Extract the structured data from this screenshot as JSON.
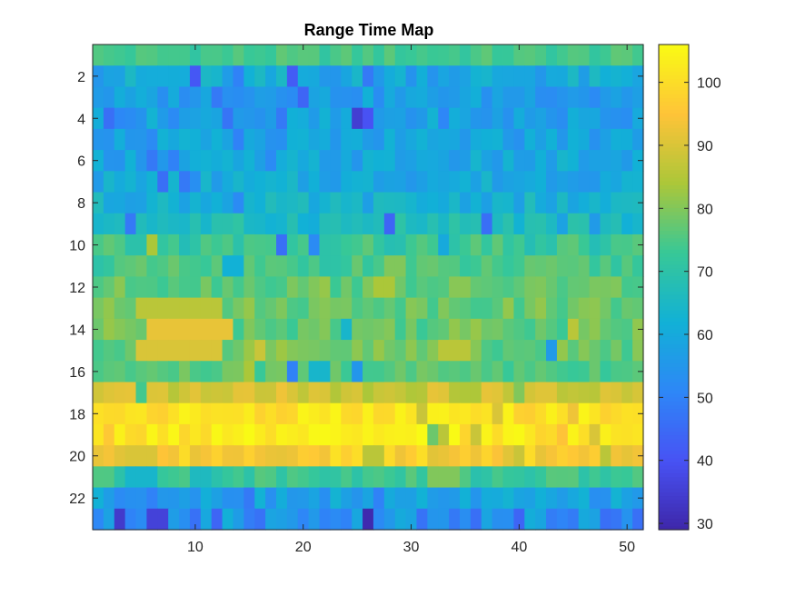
{
  "chart_data": {
    "type": "heatmap",
    "title": "Range Time Map",
    "xlabel": "",
    "ylabel": "",
    "x_range": [
      1,
      51
    ],
    "xlim": [
      0.5,
      51.5
    ],
    "y_range": [
      1,
      23
    ],
    "ylim": [
      0.5,
      23.5
    ],
    "y_reversed": true,
    "x_ticks": [
      "10",
      "20",
      "30",
      "40",
      "50"
    ],
    "y_ticks": [
      "2",
      "4",
      "6",
      "8",
      "10",
      "12",
      "14",
      "16",
      "18",
      "20",
      "22"
    ],
    "colorbar": {
      "colormap": "parula",
      "clim": [
        29,
        106
      ],
      "ticks": [
        "30",
        "40",
        "50",
        "60",
        "70",
        "80",
        "90",
        "100"
      ]
    },
    "rows": [
      {
        "y": 1,
        "base": 74,
        "amp": 3
      },
      {
        "y": 2,
        "base": 60,
        "amp": 6,
        "lows": [
          [
            10,
            41
          ],
          [
            14,
            50
          ],
          [
            19,
            42
          ],
          [
            26,
            48
          ],
          [
            35,
            58
          ]
        ]
      },
      {
        "y": 3,
        "base": 57,
        "amp": 5,
        "lows": [
          [
            12,
            48
          ],
          [
            20,
            44
          ],
          [
            33,
            55
          ],
          [
            47,
            52
          ]
        ]
      },
      {
        "y": 4,
        "base": 57,
        "amp": 6,
        "lows": [
          [
            2,
            46
          ],
          [
            8,
            52
          ],
          [
            13,
            47
          ],
          [
            18,
            48
          ],
          [
            25,
            35
          ],
          [
            26,
            40
          ],
          [
            36,
            55
          ]
        ]
      },
      {
        "y": 5,
        "base": 58,
        "amp": 5,
        "lows": [
          [
            6,
            52
          ],
          [
            14,
            50
          ],
          [
            17,
            54
          ],
          [
            23,
            55
          ],
          [
            29,
            57
          ],
          [
            43,
            62
          ]
        ]
      },
      {
        "y": 6,
        "base": 59,
        "amp": 5,
        "lows": [
          [
            6,
            48
          ],
          [
            8,
            50
          ],
          [
            17,
            52
          ],
          [
            37,
            58
          ],
          [
            48,
            58
          ]
        ]
      },
      {
        "y": 7,
        "base": 60,
        "amp": 5,
        "lows": [
          [
            7,
            46
          ],
          [
            9,
            48
          ],
          [
            10,
            53
          ],
          [
            39,
            58
          ]
        ]
      },
      {
        "y": 8,
        "base": 62,
        "amp": 5,
        "lows": [
          [
            14,
            52
          ],
          [
            43,
            58
          ]
        ]
      },
      {
        "y": 9,
        "base": 66,
        "amp": 5,
        "lows": [
          [
            4,
            48
          ],
          [
            28,
            44
          ],
          [
            37,
            46
          ],
          [
            44,
            58
          ],
          [
            47,
            56
          ]
        ]
      },
      {
        "y": 10,
        "base": 72,
        "amp": 5,
        "lows": [
          [
            18,
            46
          ],
          [
            21,
            52
          ],
          [
            33,
            60
          ]
        ],
        "highs": [
          [
            6,
            84
          ]
        ]
      },
      {
        "y": 11,
        "base": 74,
        "amp": 4,
        "lows": [
          [
            13,
            62
          ],
          [
            14,
            62
          ]
        ],
        "highs": [
          [
            28,
            80
          ],
          [
            29,
            80
          ],
          [
            43,
            78
          ]
        ]
      },
      {
        "y": 12,
        "base": 77,
        "amp": 4,
        "highs": [
          [
            22,
            82
          ],
          [
            27,
            84
          ],
          [
            28,
            84
          ]
        ]
      },
      {
        "y": 13,
        "base": 78,
        "amp": 4,
        "highs": [
          [
            5,
            86
          ],
          [
            6,
            86
          ],
          [
            7,
            86
          ],
          [
            8,
            86
          ],
          [
            9,
            86
          ],
          [
            10,
            86
          ],
          [
            11,
            86
          ],
          [
            12,
            86
          ]
        ]
      },
      {
        "y": 14,
        "base": 78,
        "amp": 5,
        "highs": [
          [
            6,
            92
          ],
          [
            7,
            92
          ],
          [
            8,
            92
          ],
          [
            9,
            92
          ],
          [
            10,
            92
          ],
          [
            11,
            92
          ],
          [
            12,
            92
          ],
          [
            13,
            92
          ],
          [
            45,
            86
          ]
        ],
        "lows": [
          [
            24,
            64
          ]
        ]
      },
      {
        "y": 15,
        "base": 78,
        "amp": 5,
        "highs": [
          [
            5,
            90
          ],
          [
            6,
            90
          ],
          [
            7,
            90
          ],
          [
            8,
            90
          ],
          [
            9,
            90
          ],
          [
            10,
            90
          ],
          [
            11,
            90
          ],
          [
            12,
            90
          ],
          [
            16,
            88
          ],
          [
            33,
            86
          ],
          [
            34,
            86
          ],
          [
            35,
            86
          ]
        ],
        "lows": [
          [
            43,
            56
          ]
        ]
      },
      {
        "y": 16,
        "base": 76,
        "amp": 4,
        "lows": [
          [
            19,
            50
          ],
          [
            25,
            55
          ],
          [
            21,
            64
          ],
          [
            22,
            64
          ]
        ],
        "highs": [
          [
            15,
            84
          ]
        ]
      },
      {
        "y": 17,
        "base": 88,
        "amp": 4,
        "lows": [
          [
            5,
            74
          ],
          [
            40,
            80
          ]
        ],
        "highs": [
          [
            18,
            93
          ]
        ]
      },
      {
        "y": 18,
        "base": 101,
        "amp": 4,
        "lows": [
          [
            31,
            88
          ],
          [
            38,
            90
          ],
          [
            45,
            93
          ]
        ]
      },
      {
        "y": 19,
        "base": 102,
        "amp": 4,
        "lows": [
          [
            2,
            96
          ],
          [
            32,
            78
          ],
          [
            33,
            86
          ],
          [
            36,
            88
          ],
          [
            44,
            95
          ],
          [
            47,
            90
          ]
        ]
      },
      {
        "y": 20,
        "base": 96,
        "amp": 5,
        "lows": [
          [
            4,
            90
          ],
          [
            5,
            90
          ],
          [
            6,
            90
          ],
          [
            26,
            86
          ],
          [
            27,
            86
          ],
          [
            40,
            88
          ],
          [
            48,
            86
          ]
        ]
      },
      {
        "y": 21,
        "base": 73,
        "amp": 4,
        "lows": [
          [
            4,
            64
          ],
          [
            5,
            64
          ],
          [
            6,
            64
          ],
          [
            10,
            66
          ],
          [
            11,
            66
          ]
        ],
        "highs": [
          [
            32,
            80
          ],
          [
            33,
            80
          ],
          [
            34,
            80
          ]
        ]
      },
      {
        "y": 22,
        "base": 58,
        "amp": 5,
        "lows": [
          [
            3,
            52
          ],
          [
            6,
            50
          ],
          [
            15,
            48
          ],
          [
            27,
            50
          ]
        ]
      },
      {
        "y": 23,
        "base": 54,
        "amp": 8,
        "lows": [
          [
            3,
            34
          ],
          [
            6,
            36
          ],
          [
            7,
            36
          ],
          [
            26,
            30
          ],
          [
            40,
            44
          ],
          [
            12,
            44
          ]
        ]
      }
    ]
  }
}
